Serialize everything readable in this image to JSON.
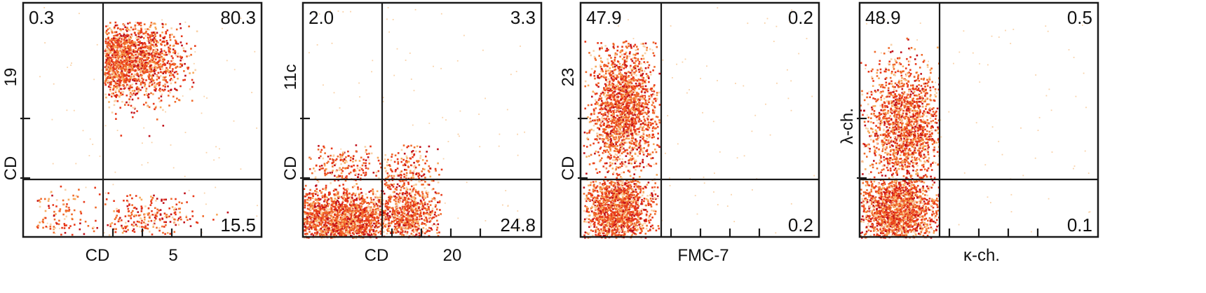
{
  "figure": {
    "panels": [
      {
        "quadrants": {
          "top_left": "0.3",
          "top_right": "80.3",
          "bottom_left": "",
          "bottom_right": "15.5"
        },
        "x_label": [
          "CD",
          "5"
        ],
        "y_label": [
          "CD",
          "19"
        ]
      },
      {
        "quadrants": {
          "top_left": "2.0",
          "top_right": "3.3",
          "bottom_left": "",
          "bottom_right": "24.8"
        },
        "x_label": [
          "CD",
          "20"
        ],
        "y_label": [
          "CD",
          "11c"
        ]
      },
      {
        "quadrants": {
          "top_left": "47.9",
          "top_right": "0.2",
          "bottom_left": "",
          "bottom_right": "0.2"
        },
        "x_label": [
          "FMC-7"
        ],
        "y_label": [
          "CD",
          "23"
        ]
      },
      {
        "quadrants": {
          "top_left": "48.9",
          "top_right": "0.5",
          "bottom_left": "",
          "bottom_right": "0.1"
        },
        "x_label": [
          "κ-ch."
        ],
        "y_label": [
          "λ-ch."
        ]
      }
    ],
    "colors": {
      "dense": "#e8391a",
      "mid": "#f06a2a",
      "light": "#f7a85a",
      "pale": "#f9d2a8",
      "dark": "#c0101a",
      "frame": "#1a1a1a"
    }
  },
  "chart_data": [
    {
      "type": "scatter",
      "title": "",
      "xlabel": "CD 5",
      "ylabel": "CD 19",
      "quadrant_percentages": {
        "top_left": 0.3,
        "top_right": 80.3,
        "bottom_right": 15.5
      },
      "populations": [
        {
          "region": "top_right",
          "x_center": 0.38,
          "y_center": 0.6,
          "density": "high"
        },
        {
          "region": "bottom_right",
          "x_center": 0.45,
          "y_center": 0.1,
          "density": "low"
        },
        {
          "region": "bottom_left",
          "x_center": 0.22,
          "y_center": 0.12,
          "density": "low"
        }
      ]
    },
    {
      "type": "scatter",
      "title": "",
      "xlabel": "CD 20",
      "ylabel": "CD 11c",
      "quadrant_percentages": {
        "top_left": 2.0,
        "top_right": 3.3,
        "bottom_right": 24.8
      },
      "populations": [
        {
          "region": "bottom_left",
          "x_center": 0.2,
          "y_center": 0.08,
          "density": "high"
        },
        {
          "region": "bottom_right",
          "x_center": 0.44,
          "y_center": 0.1,
          "density": "high"
        },
        {
          "region": "top_left",
          "x_center": 0.24,
          "y_center": 0.34,
          "density": "low"
        },
        {
          "region": "top_right",
          "x_center": 0.47,
          "y_center": 0.32,
          "density": "low"
        }
      ]
    },
    {
      "type": "scatter",
      "title": "",
      "xlabel": "FMC-7",
      "ylabel": "CD 23",
      "quadrant_percentages": {
        "top_left": 47.9,
        "top_right": 0.2,
        "bottom_right": 0.2
      },
      "populations": [
        {
          "region": "top_left",
          "x_center": 0.2,
          "y_center": 0.45,
          "density": "high"
        },
        {
          "region": "bottom_left",
          "x_center": 0.2,
          "y_center": 0.12,
          "density": "high"
        }
      ]
    },
    {
      "type": "scatter",
      "title": "",
      "xlabel": "κ-ch.",
      "ylabel": "λ-ch.",
      "quadrant_percentages": {
        "top_left": 48.9,
        "top_right": 0.5,
        "bottom_right": 0.1
      },
      "populations": [
        {
          "region": "top_left",
          "x_center": 0.22,
          "y_center": 0.4,
          "density": "high"
        },
        {
          "region": "bottom_left",
          "x_center": 0.22,
          "y_center": 0.12,
          "density": "high"
        }
      ]
    }
  ]
}
